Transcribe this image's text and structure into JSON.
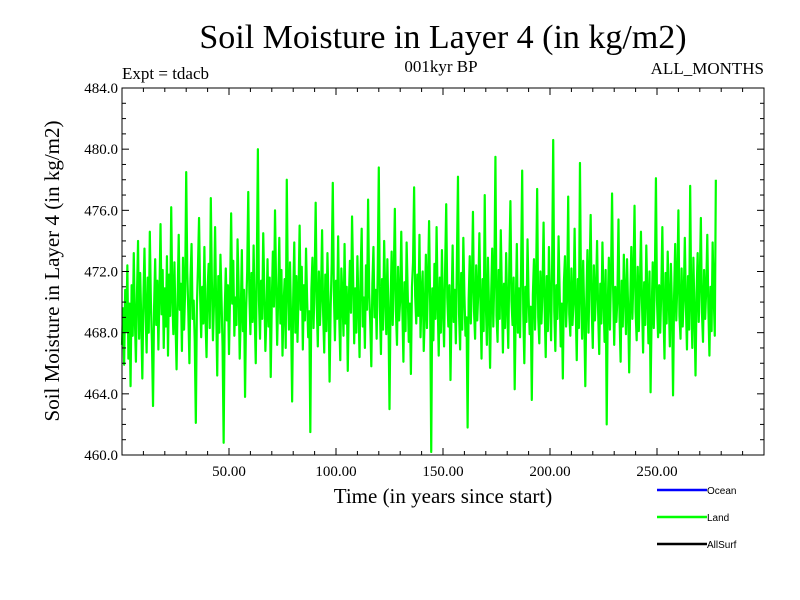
{
  "chart_data": {
    "type": "line",
    "title": "Soil Moisture in Layer 4 (in kg/m2)",
    "subtitle": "001kyr BP",
    "expt_label": "Expt = tdacb",
    "period_label": "ALL_MONTHS",
    "xlabel": "Time (in years since start)",
    "ylabel": "Soil Moisture in Layer 4 (in kg/m2)",
    "xlim": [
      0,
      300
    ],
    "ylim": [
      460,
      484
    ],
    "x_ticks": [
      50,
      100,
      150,
      200,
      250
    ],
    "x_tick_labels": [
      "50.00",
      "100.00",
      "150.00",
      "200.00",
      "250.00"
    ],
    "y_ticks": [
      460,
      464,
      468,
      472,
      476,
      480,
      484
    ],
    "y_tick_labels": [
      "460.0",
      "464.0",
      "468.0",
      "472.0",
      "476.0",
      "480.0",
      "484.0"
    ],
    "series": [
      {
        "name": "Land",
        "color": "#00ff00",
        "x_start": 0,
        "x_step": 0.5,
        "values": [
          467.2,
          469.6,
          465.9,
          470.8,
          468.1,
          472.4,
          466.3,
          469.9,
          464.5,
          471.1,
          467.8,
          473.2,
          469.0,
          466.1,
          470.5,
          474.0,
          467.6,
          471.9,
          468.8,
          465.0,
          470.2,
          473.5,
          469.4,
          466.7,
          471.6,
          468.0,
          474.6,
          470.0,
          467.3,
          463.2,
          469.7,
          472.8,
          468.5,
          471.4,
          466.9,
          470.6,
          475.1,
          469.2,
          472.1,
          467.0,
          470.9,
          468.4,
          473.0,
          466.5,
          471.8,
          469.1,
          476.2,
          470.4,
          467.9,
          472.6,
          468.7,
          465.6,
          470.3,
          474.4,
          469.5,
          471.2,
          466.8,
          472.9,
          468.2,
          470.7,
          478.5,
          472.0,
          469.3,
          466.0,
          471.5,
          473.8,
          468.9,
          470.1,
          467.4,
          462.1,
          469.8,
          472.3,
          475.5,
          470.6,
          467.7,
          471.0,
          468.6,
          473.6,
          469.0,
          466.4,
          470.9,
          472.5,
          468.3,
          476.8,
          471.3,
          467.5,
          470.0,
          474.9,
          469.6,
          465.2,
          471.7,
          468.0,
          473.1,
          470.2,
          467.1,
          460.8,
          469.4,
          472.2,
          468.8,
          471.1,
          466.6,
          470.5,
          475.8,
          469.9,
          472.7,
          467.8,
          470.3,
          468.5,
          474.1,
          471.0,
          466.3,
          469.2,
          473.4,
          468.1,
          470.8,
          463.8,
          469.5,
          472.0,
          477.2,
          470.6,
          467.9,
          471.9,
          468.7,
          473.7,
          469.3,
          466.0,
          472.4,
          480.0,
          470.1,
          467.6,
          471.4,
          468.9,
          474.5,
          470.7,
          466.8,
          469.1,
          472.8,
          468.4,
          471.6,
          465.1,
          470.0,
          473.3,
          469.7,
          476.0,
          471.2,
          467.2,
          470.4,
          474.2,
          468.6,
          472.1,
          466.5,
          469.8,
          471.5,
          467.0,
          478.0,
          470.9,
          468.2,
          472.6,
          469.0,
          463.5,
          470.3,
          473.9,
          468.0,
          471.7,
          467.4,
          470.6,
          475.0,
          469.5,
          472.3,
          466.9,
          471.1,
          468.8,
          473.5,
          470.2,
          467.7,
          469.4,
          461.5,
          470.8,
          472.9,
          468.3,
          471.3,
          476.5,
          469.9,
          467.1,
          472.0,
          468.5,
          470.5,
          474.7,
          469.2,
          466.7,
          471.8,
          468.1,
          473.2,
          470.0,
          464.8,
          469.6,
          472.5,
          477.8,
          470.7,
          467.5,
          471.4,
          468.9,
          474.3,
          469.1,
          466.2,
          472.2,
          470.4,
          467.8,
          473.8,
          468.6,
          471.0,
          465.5,
          470.1,
          472.7,
          469.3,
          475.6,
          471.6,
          467.3,
          470.9,
          468.0,
          473.0,
          469.8,
          466.4,
          471.9,
          474.8,
          468.4,
          470.3,
          467.0,
          472.4,
          469.5,
          476.7,
          470.6,
          468.7,
          465.8,
          471.2,
          473.6,
          469.0,
          470.8,
          467.6,
          472.1,
          478.8,
          469.7,
          466.6,
          471.5,
          468.2,
          474.0,
          470.5,
          467.9,
          472.8,
          469.2,
          463.0,
          470.0,
          473.3,
          468.5,
          471.7,
          476.1,
          469.4,
          467.2,
          472.3,
          468.8,
          470.2,
          474.6,
          469.6,
          466.1,
          471.3,
          468.1,
          473.9,
          470.7,
          467.4,
          469.9,
          465.3,
          471.0,
          472.6,
          477.5,
          470.4,
          468.6,
          471.8,
          469.1,
          474.4,
          467.7,
          470.6,
          472.0,
          466.8,
          469.3,
          473.1,
          468.3,
          471.4,
          475.3,
          469.8,
          460.2,
          470.9,
          467.5,
          472.5,
          468.9,
          474.9,
          470.1,
          466.5,
          471.6,
          468.0,
          473.4,
          469.5,
          467.1,
          472.2,
          476.4,
          470.3,
          468.4,
          471.1,
          464.9,
          469.7,
          473.7,
          468.7,
          470.8,
          467.3,
          472.7,
          478.2,
          469.2,
          466.9,
          471.9,
          468.2,
          474.2,
          470.5,
          467.8,
          469.0,
          461.8,
          470.2,
          473.0,
          468.6,
          471.3,
          475.9,
          469.4,
          467.6,
          472.4,
          468.8,
          470.7,
          474.5,
          469.9,
          466.3,
          471.5,
          468.1,
          477.0,
          470.0,
          467.2,
          472.9,
          469.6,
          465.7,
          470.4,
          473.5,
          468.4,
          471.8,
          479.5,
          469.1,
          467.4,
          472.1,
          468.9,
          474.7,
          470.6,
          466.7,
          471.2,
          468.3,
          473.2,
          469.8,
          467.0,
          472.6,
          476.6,
          470.1,
          468.5,
          471.6,
          464.3,
          469.5,
          473.8,
          468.0,
          470.9,
          467.7,
          472.3,
          478.6,
          469.3,
          466.0,
          471.0,
          468.7,
          474.1,
          470.3,
          467.9,
          469.7,
          463.6,
          470.5,
          472.8,
          468.2,
          471.4,
          477.4,
          469.0,
          467.3,
          472.0,
          468.6,
          470.8,
          475.2,
          469.6,
          466.4,
          471.7,
          468.1,
          473.6,
          470.2,
          467.5,
          472.5,
          480.6,
          469.4,
          466.8,
          471.1,
          468.9,
          474.3,
          470.7,
          467.1,
          469.9,
          465.0,
          471.3,
          473.0,
          468.4,
          470.4,
          476.9,
          469.2,
          467.8,
          472.2,
          468.5,
          470.0,
          474.8,
          469.7,
          466.2,
          471.5,
          468.3,
          479.1,
          470.5,
          467.6,
          472.7,
          469.1,
          464.5,
          470.1,
          473.4,
          468.0,
          471.9,
          475.7,
          469.5,
          467.0,
          472.4,
          468.8,
          470.6,
          474.0,
          469.3,
          466.6,
          471.2,
          468.6,
          473.9,
          470.3,
          467.4,
          472.1,
          462.0,
          469.8,
          472.9,
          468.2,
          471.6,
          477.1,
          470.8,
          467.2,
          471.0,
          468.7,
          470.2,
          475.4,
          469.0,
          466.1,
          471.4,
          468.4,
          473.1,
          470.6,
          467.9,
          472.8,
          469.6,
          465.4,
          470.0,
          473.6,
          468.9,
          471.8,
          476.3,
          469.4,
          467.5,
          472.3,
          468.1,
          470.9,
          474.6,
          469.9,
          466.7,
          471.3,
          468.5,
          473.7,
          470.4,
          467.3,
          472.0,
          464.1,
          469.2,
          472.6,
          468.3,
          471.5,
          478.1,
          470.1,
          467.7,
          471.1,
          468.0,
          470.7,
          474.9,
          469.5,
          466.3,
          471.9,
          468.6,
          473.3,
          470.2,
          467.1,
          472.5,
          469.7,
          463.9,
          470.5,
          473.8,
          468.8,
          471.2,
          476.0,
          469.1,
          467.6,
          472.2,
          468.4,
          470.3,
          474.2,
          469.8,
          466.9,
          471.7,
          468.2,
          477.6,
          470.0,
          467.0,
          472.9,
          469.4,
          465.2,
          470.6,
          473.2,
          468.7,
          471.4,
          475.5,
          469.3,
          467.4,
          472.1,
          468.9,
          470.8,
          474.4,
          469.6,
          466.5,
          471.0,
          468.1,
          473.9,
          470.4,
          467.8,
          478.0
        ]
      }
    ],
    "legend": {
      "position": "bottom-right",
      "entries": [
        {
          "label": "Ocean",
          "color": "#0000ff"
        },
        {
          "label": "Land",
          "color": "#00ff00"
        },
        {
          "label": "AllSurf",
          "color": "#000000"
        }
      ]
    }
  }
}
